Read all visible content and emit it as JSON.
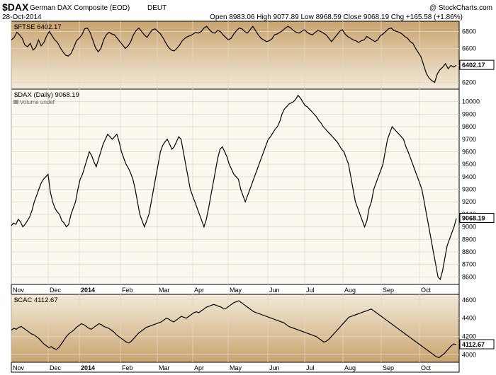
{
  "header": {
    "symbol": "$DAX",
    "name": "German DAX Composite (EOD)",
    "exchange": "DEUT",
    "date": "28-Oct-2014",
    "watermark": "@ StockCharts.com",
    "ohlc_text": "Open 8983.06  High 9077.89  Low 8968.59  Close 9068.19  Chg +165.58 (+1.86%)"
  },
  "x_axis": {
    "months": [
      "Nov",
      "Dec",
      "2014",
      "Feb",
      "Mar",
      "Apr",
      "May",
      "Jun",
      "Jul",
      "Aug",
      "Sep",
      "Oct"
    ]
  },
  "chart_data": [
    {
      "type": "line",
      "label": "$FTSE 6402.17",
      "series": [
        {
          "name": "$FTSE",
          "values": [
            6700,
            6725,
            6790,
            6760,
            6720,
            6640,
            6620,
            6660,
            6580,
            6610,
            6700,
            6630,
            6670,
            6745,
            6800,
            6750,
            6700,
            6670,
            6610,
            6560,
            6520,
            6510,
            6540,
            6610,
            6690,
            6720,
            6760,
            6830,
            6840,
            6790,
            6700,
            6610,
            6560,
            6600,
            6700,
            6760,
            6790,
            6770,
            6760,
            6720,
            6680,
            6640,
            6600,
            6630,
            6680,
            6760,
            6810,
            6840,
            6800,
            6760,
            6730,
            6780,
            6820,
            6830,
            6800,
            6770,
            6720,
            6660,
            6610,
            6580,
            6570,
            6600,
            6640,
            6690,
            6720,
            6740,
            6750,
            6770,
            6790,
            6780,
            6800,
            6840,
            6860,
            6820,
            6790,
            6780,
            6810,
            6800,
            6760,
            6730,
            6700,
            6720,
            6770,
            6810,
            6840,
            6830,
            6800,
            6780,
            6820,
            6860,
            6810,
            6760,
            6720,
            6700,
            6680,
            6690,
            6710,
            6760,
            6770,
            6790,
            6810,
            6840,
            6860,
            6840,
            6810,
            6790,
            6780,
            6800,
            6820,
            6790,
            6770,
            6760,
            6790,
            6810,
            6800,
            6780,
            6760,
            6720,
            6680,
            6720,
            6760,
            6800,
            6820,
            6770,
            6740,
            6720,
            6700,
            6690,
            6670,
            6690,
            6700,
            6740,
            6720,
            6700,
            6680,
            6700,
            6750,
            6770,
            6800,
            6830,
            6840,
            6810,
            6800,
            6790,
            6770,
            6740,
            6720,
            6680,
            6660,
            6600,
            6550,
            6500,
            6400,
            6300,
            6250,
            6220,
            6200,
            6300,
            6350,
            6380,
            6420,
            6360,
            6400,
            6380,
            6402.17
          ]
        }
      ],
      "ylim": [
        6120,
        6920
      ],
      "yticks": [
        6200,
        6400,
        6600,
        6800
      ],
      "last": "6402.17"
    },
    {
      "type": "line",
      "label": "$DAX (Daily) 9068.19",
      "volume_label": "Volume undef",
      "series": [
        {
          "name": "$DAX",
          "values": [
            9010,
            9030,
            9020,
            9060,
            9040,
            9000,
            9020,
            9050,
            9080,
            9130,
            9200,
            9250,
            9300,
            9350,
            9380,
            9400,
            9420,
            9280,
            9200,
            9150,
            9120,
            9100,
            9050,
            9030,
            9000,
            9020,
            9100,
            9150,
            9200,
            9300,
            9380,
            9420,
            9480,
            9540,
            9600,
            9570,
            9520,
            9480,
            9540,
            9600,
            9660,
            9700,
            9740,
            9720,
            9700,
            9720,
            9740,
            9680,
            9600,
            9550,
            9500,
            9470,
            9430,
            9380,
            9300,
            9200,
            9100,
            9050,
            9000,
            9050,
            9100,
            9200,
            9300,
            9400,
            9500,
            9600,
            9650,
            9680,
            9700,
            9660,
            9620,
            9640,
            9680,
            9720,
            9700,
            9600,
            9500,
            9400,
            9300,
            9250,
            9200,
            9150,
            9100,
            9050,
            9000,
            9060,
            9150,
            9250,
            9350,
            9450,
            9550,
            9620,
            9640,
            9600,
            9560,
            9500,
            9460,
            9420,
            9400,
            9380,
            9300,
            9250,
            9200,
            9250,
            9300,
            9350,
            9400,
            9450,
            9500,
            9550,
            9600,
            9650,
            9700,
            9720,
            9750,
            9780,
            9800,
            9840,
            9900,
            9940,
            9960,
            9980,
            9990,
            10000,
            10020,
            10050,
            10030,
            10000,
            9970,
            9960,
            9940,
            9920,
            9900,
            9880,
            9850,
            9830,
            9800,
            9780,
            9760,
            9740,
            9720,
            9700,
            9680,
            9650,
            9620,
            9600,
            9550,
            9500,
            9400,
            9300,
            9200,
            9150,
            9100,
            9050,
            9000,
            9050,
            9150,
            9200,
            9300,
            9350,
            9400,
            9450,
            9500,
            9600,
            9700,
            9750,
            9800,
            9780,
            9760,
            9740,
            9720,
            9700,
            9640,
            9600,
            9550,
            9500,
            9450,
            9400,
            9350,
            9300,
            9200,
            9100,
            9000,
            8900,
            8800,
            8700,
            8600,
            8580,
            8650,
            8750,
            8850,
            8900,
            8950,
            9000,
            9068.19
          ]
        }
      ],
      "ylim": [
        8540,
        10100
      ],
      "yticks": [
        8600,
        8700,
        8800,
        8900,
        9000,
        9100,
        9200,
        9300,
        9400,
        9500,
        9600,
        9700,
        9800,
        9900,
        10000
      ],
      "last": "9068.19"
    },
    {
      "type": "line",
      "label": "$CAC 4112.67",
      "series": [
        {
          "name": "$CAC",
          "values": [
            4270,
            4290,
            4280,
            4300,
            4310,
            4290,
            4270,
            4250,
            4230,
            4220,
            4200,
            4180,
            4150,
            4120,
            4100,
            4080,
            4090,
            4070,
            4060,
            4080,
            4120,
            4160,
            4200,
            4230,
            4250,
            4270,
            4300,
            4320,
            4340,
            4330,
            4310,
            4290,
            4280,
            4300,
            4320,
            4340,
            4330,
            4310,
            4300,
            4290,
            4270,
            4250,
            4220,
            4200,
            4180,
            4160,
            4140,
            4130,
            4150,
            4180,
            4210,
            4240,
            4260,
            4280,
            4300,
            4310,
            4320,
            4330,
            4340,
            4350,
            4360,
            4380,
            4400,
            4390,
            4370,
            4360,
            4380,
            4400,
            4420,
            4410,
            4400,
            4420,
            4440,
            4460,
            4470,
            4460,
            4480,
            4500,
            4520,
            4530,
            4540,
            4550,
            4540,
            4530,
            4520,
            4500,
            4510,
            4530,
            4550,
            4570,
            4580,
            4590,
            4570,
            4550,
            4530,
            4510,
            4490,
            4470,
            4460,
            4450,
            4440,
            4430,
            4420,
            4410,
            4400,
            4390,
            4380,
            4370,
            4360,
            4350,
            4330,
            4310,
            4300,
            4290,
            4280,
            4270,
            4260,
            4250,
            4240,
            4230,
            4220,
            4210,
            4200,
            4180,
            4160,
            4140,
            4150,
            4170,
            4200,
            4230,
            4260,
            4290,
            4320,
            4350,
            4380,
            4410,
            4420,
            4430,
            4440,
            4450,
            4460,
            4470,
            4480,
            4490,
            4500,
            4480,
            4460,
            4440,
            4420,
            4400,
            4380,
            4360,
            4340,
            4320,
            4300,
            4280,
            4260,
            4240,
            4220,
            4200,
            4180,
            4160,
            4140,
            4120,
            4100,
            4080,
            4060,
            4040,
            4020,
            4000,
            3980,
            3970,
            3990,
            4010,
            4040,
            4070,
            4100,
            4120,
            4112.67
          ]
        }
      ],
      "ylim": [
        3920,
        4660
      ],
      "yticks": [
        4000,
        4200,
        4400,
        4600
      ],
      "last": "4112.67"
    }
  ],
  "colors": {
    "panel_gradient_top": "#f5efe2",
    "panel_gradient_bottom": "#c9a46f",
    "line": "#000000",
    "grid": "#e6dccb"
  }
}
